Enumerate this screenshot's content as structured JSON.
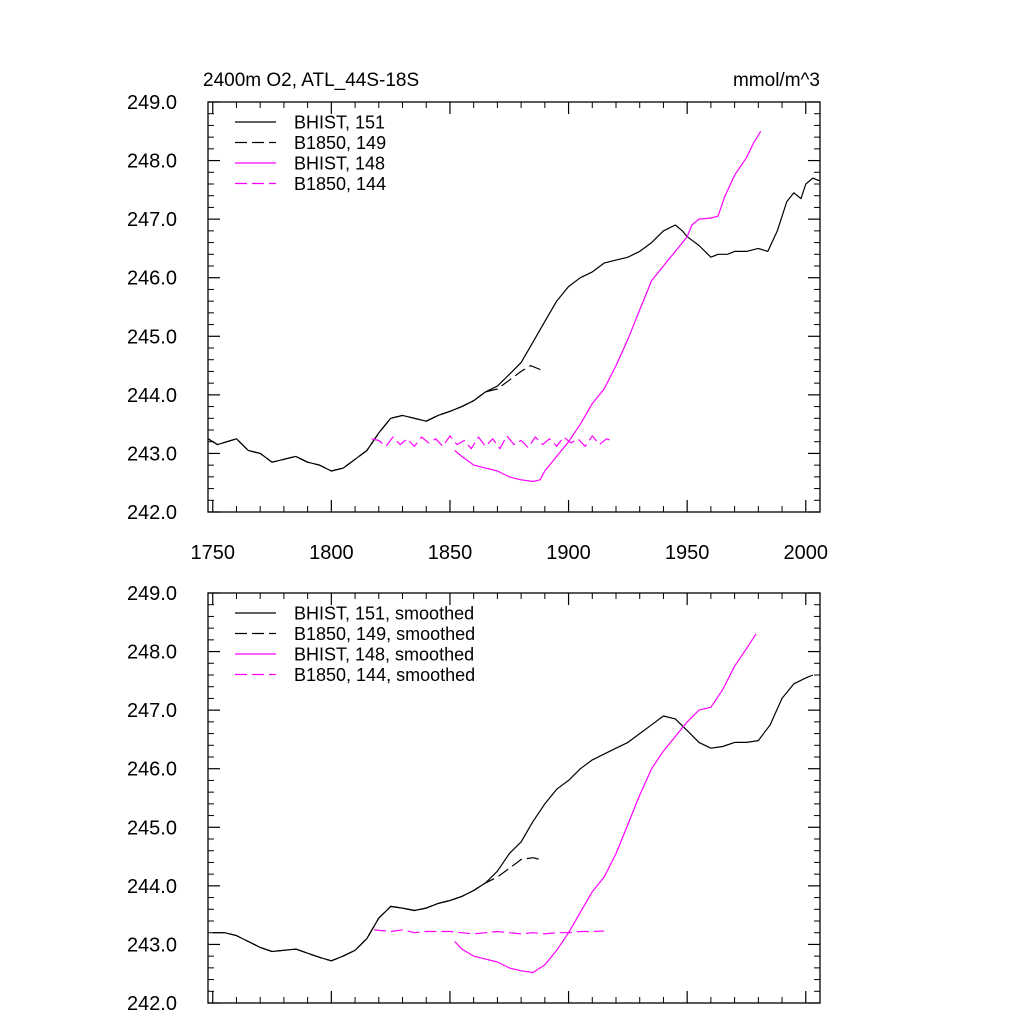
{
  "figure": {
    "title_left": "2400m O2, ATL_44S-18S",
    "title_right": "mmol/m^3"
  },
  "chart_data": [
    {
      "type": "line",
      "title": "2400m O2, ATL_44S-18S",
      "units": "mmol/m^3",
      "xlim": [
        1748,
        2006
      ],
      "ylim": [
        242.0,
        249.0
      ],
      "x_ticks": [
        1750,
        1800,
        1850,
        1900,
        1950,
        2000
      ],
      "x_tick_labels": [
        "1750",
        "1800",
        "1850",
        "1900",
        "1950",
        "2000"
      ],
      "y_ticks": [
        242.0,
        243.0,
        244.0,
        245.0,
        246.0,
        247.0,
        248.0,
        249.0
      ],
      "y_tick_labels": [
        "242.0",
        "243.0",
        "244.0",
        "245.0",
        "246.0",
        "247.0",
        "248.0",
        "249.0"
      ],
      "legend_position": "top-left",
      "series": [
        {
          "name": "BHIST, 151",
          "color": "#000000",
          "dash": "solid",
          "x": [
            1748,
            1752,
            1756,
            1760,
            1765,
            1770,
            1775,
            1780,
            1785,
            1790,
            1795,
            1800,
            1805,
            1810,
            1815,
            1820,
            1825,
            1830,
            1835,
            1840,
            1845,
            1850,
            1855,
            1860,
            1865,
            1870,
            1875,
            1880,
            1885,
            1890,
            1895,
            1900,
            1905,
            1910,
            1915,
            1920,
            1925,
            1930,
            1935,
            1940,
            1945,
            1948,
            1950,
            1955,
            1960,
            1963,
            1967,
            1970,
            1975,
            1980,
            1984,
            1988,
            1992,
            1995,
            1998,
            2000,
            2003,
            2006
          ],
          "values": [
            243.25,
            243.15,
            243.2,
            243.25,
            243.05,
            243.0,
            242.85,
            242.9,
            242.95,
            242.85,
            242.8,
            242.7,
            242.75,
            242.9,
            243.05,
            243.35,
            243.6,
            243.65,
            243.6,
            243.55,
            243.65,
            243.72,
            243.8,
            243.9,
            244.05,
            244.15,
            244.35,
            244.55,
            244.9,
            245.25,
            245.6,
            245.85,
            246.0,
            246.1,
            246.25,
            246.3,
            246.35,
            246.45,
            246.6,
            246.8,
            246.9,
            246.8,
            246.7,
            246.55,
            246.35,
            246.4,
            246.4,
            246.45,
            246.45,
            246.5,
            246.45,
            246.8,
            247.3,
            247.45,
            247.35,
            247.6,
            247.7,
            247.65
          ]
        },
        {
          "name": "B1850, 149",
          "color": "#000000",
          "dash": "dashed",
          "x": [
            1748,
            1752,
            1756,
            1760,
            1765,
            1770,
            1775,
            1780,
            1785,
            1790,
            1795,
            1800,
            1805,
            1810,
            1815,
            1820,
            1825,
            1830,
            1835,
            1840,
            1845,
            1850,
            1855,
            1860,
            1865,
            1870,
            1875,
            1880,
            1884,
            1887,
            1890
          ],
          "values": [
            243.25,
            243.15,
            243.2,
            243.25,
            243.05,
            243.0,
            242.85,
            242.9,
            242.95,
            242.85,
            242.8,
            242.7,
            242.75,
            242.9,
            243.05,
            243.35,
            243.6,
            243.65,
            243.6,
            243.55,
            243.65,
            243.72,
            243.8,
            243.9,
            244.05,
            244.1,
            244.25,
            244.4,
            244.5,
            244.45,
            244.4
          ]
        },
        {
          "name": "BHIST, 148",
          "color": "#ff00ff",
          "dash": "solid",
          "x": [
            1852,
            1855,
            1860,
            1865,
            1870,
            1875,
            1880,
            1885,
            1888,
            1890,
            1895,
            1900,
            1905,
            1910,
            1915,
            1920,
            1925,
            1930,
            1935,
            1940,
            1945,
            1950,
            1952,
            1955,
            1960,
            1963,
            1966,
            1970,
            1975,
            1978,
            1981
          ],
          "values": [
            243.05,
            242.95,
            242.8,
            242.75,
            242.7,
            242.6,
            242.55,
            242.52,
            242.55,
            242.7,
            242.95,
            243.2,
            243.5,
            243.85,
            244.1,
            244.5,
            244.95,
            245.45,
            245.95,
            246.2,
            246.45,
            246.7,
            246.9,
            247.0,
            247.02,
            247.05,
            247.4,
            247.75,
            248.05,
            248.3,
            248.5
          ]
        },
        {
          "name": "B1850, 144",
          "color": "#ff00ff",
          "dash": "dashed",
          "x": [
            1817,
            1820,
            1823,
            1826,
            1829,
            1832,
            1835,
            1838,
            1841,
            1844,
            1847,
            1850,
            1853,
            1856,
            1859,
            1862,
            1865,
            1868,
            1871,
            1874,
            1877,
            1880,
            1883,
            1886,
            1889,
            1892,
            1895,
            1898,
            1901,
            1904,
            1907,
            1910,
            1913,
            1916,
            1918
          ],
          "values": [
            243.25,
            243.22,
            243.12,
            243.28,
            243.15,
            243.25,
            243.12,
            243.28,
            243.18,
            243.25,
            243.12,
            243.3,
            243.15,
            243.22,
            243.08,
            243.28,
            243.12,
            243.25,
            243.08,
            243.3,
            243.15,
            243.22,
            243.1,
            243.28,
            243.15,
            243.25,
            243.12,
            243.28,
            243.18,
            243.25,
            243.12,
            243.3,
            243.15,
            243.25,
            243.22
          ]
        }
      ]
    },
    {
      "type": "line",
      "title": "",
      "xlim": [
        1748,
        2006
      ],
      "ylim": [
        242.0,
        249.0
      ],
      "y_ticks": [
        242.0,
        243.0,
        244.0,
        245.0,
        246.0,
        247.0,
        248.0,
        249.0
      ],
      "y_tick_labels": [
        "242.0",
        "243.0",
        "244.0",
        "245.0",
        "246.0",
        "247.0",
        "248.0",
        "249.0"
      ],
      "x_ticks": [
        1750,
        1800,
        1850,
        1900,
        1950,
        2000
      ],
      "legend_position": "top-left",
      "series": [
        {
          "name": "BHIST, 151, smoothed",
          "color": "#000000",
          "dash": "solid",
          "x": [
            1750,
            1755,
            1760,
            1765,
            1770,
            1775,
            1780,
            1785,
            1790,
            1795,
            1800,
            1805,
            1810,
            1815,
            1820,
            1825,
            1830,
            1835,
            1840,
            1845,
            1850,
            1855,
            1860,
            1865,
            1870,
            1875,
            1880,
            1885,
            1890,
            1895,
            1900,
            1905,
            1910,
            1915,
            1920,
            1925,
            1930,
            1935,
            1940,
            1945,
            1950,
            1955,
            1960,
            1965,
            1970,
            1975,
            1980,
            1985,
            1990,
            1995,
            2000,
            2003
          ],
          "values": [
            243.2,
            243.2,
            243.15,
            243.05,
            242.95,
            242.88,
            242.9,
            242.92,
            242.85,
            242.78,
            242.72,
            242.8,
            242.9,
            243.1,
            243.45,
            243.65,
            243.62,
            243.58,
            243.62,
            243.7,
            243.75,
            243.82,
            243.92,
            244.05,
            244.25,
            244.55,
            244.75,
            245.1,
            245.4,
            245.65,
            245.8,
            246.0,
            246.15,
            246.25,
            246.35,
            246.45,
            246.6,
            246.75,
            246.9,
            246.85,
            246.65,
            246.45,
            246.35,
            246.38,
            246.45,
            246.45,
            246.48,
            246.75,
            247.2,
            247.45,
            247.55,
            247.6
          ]
        },
        {
          "name": "B1850, 149, smoothed",
          "color": "#000000",
          "dash": "dashed",
          "x": [
            1750,
            1755,
            1760,
            1765,
            1770,
            1775,
            1780,
            1785,
            1790,
            1795,
            1800,
            1805,
            1810,
            1815,
            1820,
            1825,
            1830,
            1835,
            1840,
            1845,
            1850,
            1855,
            1860,
            1865,
            1870,
            1875,
            1880,
            1885,
            1888
          ],
          "values": [
            243.2,
            243.2,
            243.15,
            243.05,
            242.95,
            242.88,
            242.9,
            242.92,
            242.85,
            242.78,
            242.72,
            242.8,
            242.9,
            243.1,
            243.45,
            243.65,
            243.62,
            243.58,
            243.62,
            243.7,
            243.75,
            243.82,
            243.92,
            244.05,
            244.15,
            244.3,
            244.45,
            244.48,
            244.45
          ]
        },
        {
          "name": "BHIST, 148, smoothed",
          "color": "#ff00ff",
          "dash": "solid",
          "x": [
            1852,
            1855,
            1860,
            1865,
            1870,
            1875,
            1880,
            1885,
            1890,
            1895,
            1900,
            1905,
            1910,
            1915,
            1920,
            1925,
            1930,
            1935,
            1940,
            1945,
            1950,
            1955,
            1960,
            1965,
            1970,
            1975,
            1979
          ],
          "values": [
            243.05,
            242.92,
            242.8,
            242.75,
            242.7,
            242.6,
            242.55,
            242.52,
            242.65,
            242.9,
            243.2,
            243.55,
            243.9,
            244.15,
            244.55,
            245.05,
            245.55,
            246.0,
            246.3,
            246.55,
            246.8,
            247.0,
            247.05,
            247.35,
            247.75,
            248.05,
            248.3
          ]
        },
        {
          "name": "B1850, 144, smoothed",
          "color": "#ff00ff",
          "dash": "dashed",
          "x": [
            1818,
            1825,
            1830,
            1835,
            1840,
            1845,
            1850,
            1855,
            1860,
            1865,
            1870,
            1875,
            1880,
            1885,
            1890,
            1895,
            1900,
            1905,
            1910,
            1915
          ],
          "values": [
            243.25,
            243.22,
            243.25,
            243.2,
            243.22,
            243.22,
            243.22,
            243.2,
            243.18,
            243.2,
            243.22,
            243.2,
            243.18,
            243.2,
            243.18,
            243.2,
            243.2,
            243.22,
            243.22,
            243.23
          ]
        }
      ]
    }
  ]
}
